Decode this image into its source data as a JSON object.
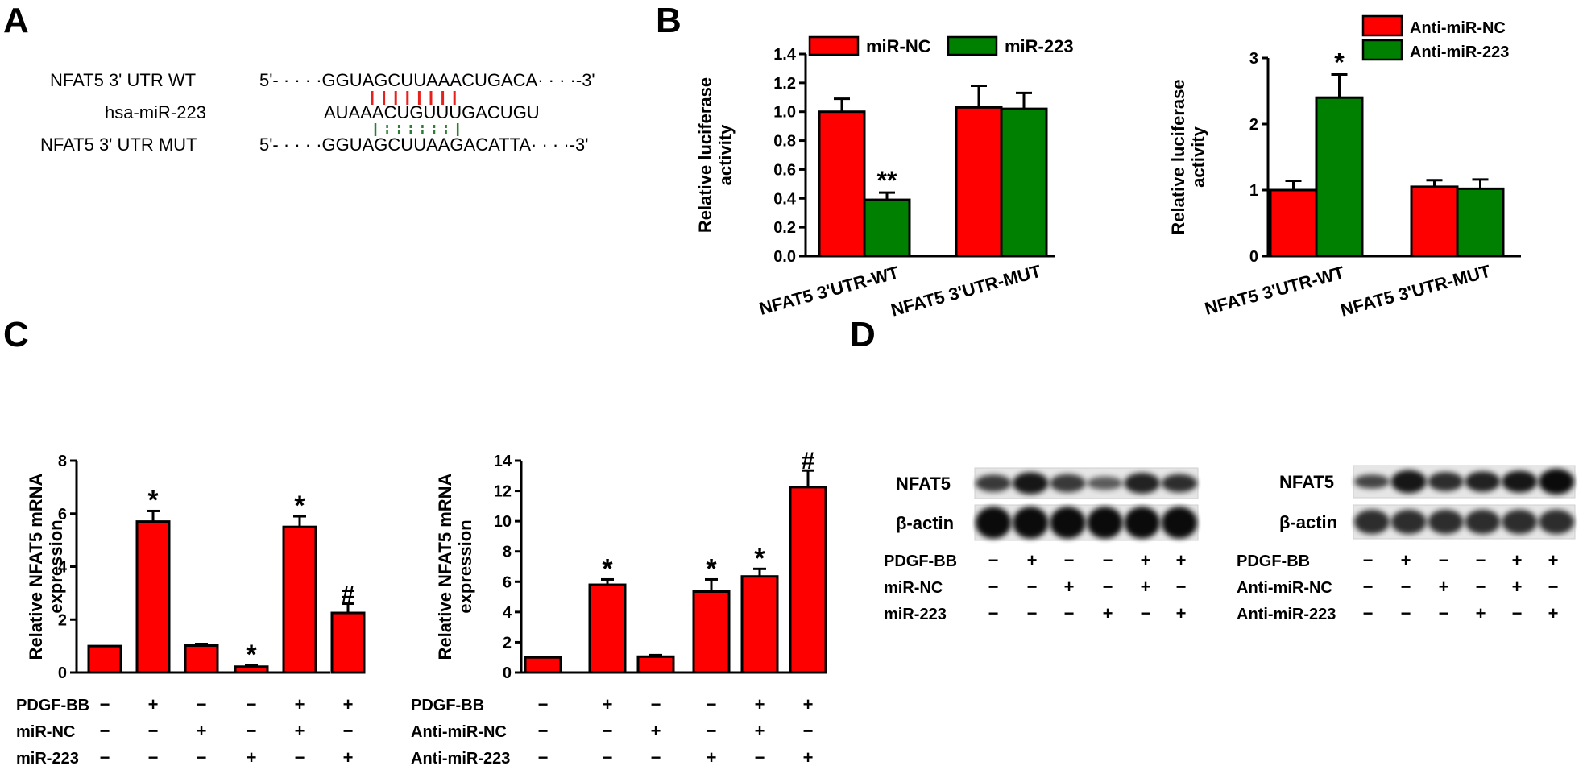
{
  "panels": {
    "a": "A",
    "b": "B",
    "c": "C",
    "d": "D"
  },
  "sequence": {
    "wt_label": "NFAT5  3' UTR WT",
    "wt_seq": "5'- · · · ·GGUAGCUUAAACUGACA· · · ·-3'",
    "mir_label": "hsa-miR-223",
    "mir_seq": "AUAAACUGUUUGACUGU",
    "mut_label": "NFAT5  3' UTR MUT",
    "mut_seq": "5'- · · · ·GGUAGCUUAAGACATTA· · · ·-3'",
    "colors": {
      "wt_pairing": "#e8201c",
      "mut_pairing": "#2e7d32"
    }
  },
  "colors": {
    "red": "#ff0000",
    "green": "#008000"
  },
  "chart_data": [
    {
      "type": "bar",
      "ylabel": "Relative luciferase activity",
      "ylim": [
        0,
        1.4
      ],
      "yticks": [
        "0.0",
        "0.2",
        "0.4",
        "0.6",
        "0.8",
        "1.0",
        "1.2",
        "1.4"
      ],
      "categories": [
        "NFAT5 3'UTR-WT",
        "NFAT5 3'UTR-MUT"
      ],
      "series": [
        {
          "name": "miR-NC",
          "values": [
            1.0,
            1.03
          ],
          "errors": [
            0.09,
            0.15
          ]
        },
        {
          "name": "miR-223",
          "values": [
            0.39,
            1.02
          ],
          "errors": [
            0.05,
            0.11
          ]
        }
      ],
      "annotations": [
        {
          "category": 0,
          "series": 1,
          "text": "**"
        }
      ],
      "legend": "top"
    },
    {
      "type": "bar",
      "ylabel": "Relative luciferase activity",
      "ylim": [
        0,
        3
      ],
      "yticks": [
        "0",
        "1",
        "2",
        "3"
      ],
      "categories": [
        "NFAT5 3'UTR-WT",
        "NFAT5 3'UTR-MUT"
      ],
      "series": [
        {
          "name": "Anti-miR-NC",
          "values": [
            1.0,
            1.05
          ],
          "errors": [
            0.14,
            0.1
          ]
        },
        {
          "name": "Anti-miR-223",
          "values": [
            2.4,
            1.02
          ],
          "errors": [
            0.35,
            0.14
          ]
        }
      ],
      "annotations": [
        {
          "category": 0,
          "series": 1,
          "text": "*"
        }
      ],
      "legend": "top-right"
    },
    {
      "type": "bar",
      "ylabel": "Relative NFAT5 mRNA expression",
      "ylim": [
        0,
        8
      ],
      "yticks": [
        "0",
        "2",
        "4",
        "6",
        "8"
      ],
      "values": [
        1.0,
        5.7,
        1.02,
        0.22,
        5.5,
        2.25
      ],
      "errors": [
        0.0,
        0.4,
        0.06,
        0.05,
        0.4,
        0.35
      ],
      "annotations": [
        "",
        "*",
        "",
        "*",
        "*",
        "#"
      ],
      "conditions": [
        {
          "label": "PDGF-BB",
          "signs": [
            "−",
            "+",
            "−",
            "−",
            "+",
            "+"
          ]
        },
        {
          "label": "miR-NC",
          "signs": [
            "−",
            "−",
            "+",
            "−",
            "+",
            "−"
          ]
        },
        {
          "label": "miR-223",
          "signs": [
            "−",
            "−",
            "−",
            "+",
            "−",
            "+"
          ]
        }
      ]
    },
    {
      "type": "bar",
      "ylabel": "Relative NFAT5 mRNA expression",
      "ylim": [
        0,
        14
      ],
      "yticks": [
        "0",
        "2",
        "4",
        "6",
        "8",
        "10",
        "12",
        "14"
      ],
      "values": [
        1.0,
        5.8,
        1.05,
        5.35,
        6.35,
        12.25
      ],
      "errors": [
        0.0,
        0.35,
        0.1,
        0.8,
        0.5,
        1.1
      ],
      "annotations": [
        "",
        "*",
        "",
        "*",
        "*",
        "#"
      ],
      "conditions": [
        {
          "label": "PDGF-BB",
          "signs": [
            "−",
            "+",
            "−",
            "−",
            "+",
            "+"
          ]
        },
        {
          "label": "Anti-miR-NC",
          "signs": [
            "−",
            "−",
            "+",
            "−",
            "+",
            "−"
          ]
        },
        {
          "label": "Anti-miR-223",
          "signs": [
            "−",
            "−",
            "−",
            "+",
            "−",
            "+"
          ]
        }
      ]
    }
  ],
  "western": [
    {
      "rows": [
        "NFAT5",
        "β-actin"
      ],
      "conditions": [
        {
          "label": "PDGF-BB",
          "signs": [
            "−",
            "+",
            "−",
            "−",
            "+",
            "+"
          ]
        },
        {
          "label": "miR-NC",
          "signs": [
            "−",
            "−",
            "+",
            "−",
            "+",
            "−"
          ]
        },
        {
          "label": "miR-223",
          "signs": [
            "−",
            "−",
            "−",
            "+",
            "−",
            "+"
          ]
        }
      ]
    },
    {
      "rows": [
        "NFAT5",
        "β-actin"
      ],
      "conditions": [
        {
          "label": "PDGF-BB",
          "signs": [
            "−",
            "+",
            "−",
            "−",
            "+",
            "+"
          ]
        },
        {
          "label": "Anti-miR-NC",
          "signs": [
            "−",
            "−",
            "+",
            "−",
            "+",
            "−"
          ]
        },
        {
          "label": "Anti-miR-223",
          "signs": [
            "−",
            "−",
            "−",
            "+",
            "−",
            "+"
          ]
        }
      ]
    }
  ]
}
